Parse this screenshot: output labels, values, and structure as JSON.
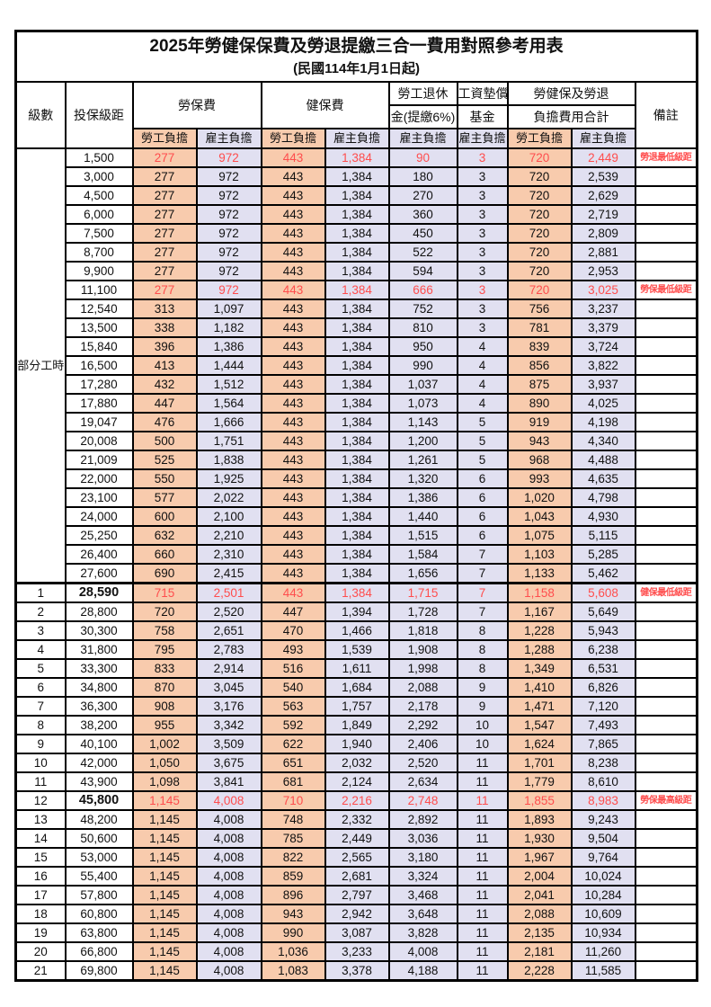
{
  "title": "2025年勞健保保費及勞退提繳三合一費用對照參考用表",
  "subtitle": "(民國114年1月1日起)",
  "columns": {
    "level": "級數",
    "bracket": "投保級距",
    "labor_ins": "勞保費",
    "health_ins": "健保費",
    "pension_l1": "勞工退休",
    "pension_l2": "金(提繳6%)",
    "wage_fund_l1": "工資墊償",
    "wage_fund_l2": "基金",
    "total_l1": "勞健保及勞退",
    "total_l2": "負擔費用合計",
    "remark": "備註",
    "employee_label": "勞工負擔",
    "employer_label": "雇主負擔"
  },
  "part_time_label": "部分工時",
  "colors": {
    "employee_bg": "#F8CBAD",
    "employer_bg": "#E1E0F1",
    "highlight_text": "#FF4D4D",
    "border": "#000000"
  },
  "rows": [
    {
      "bracket": "1,500",
      "values": [
        "277",
        "972",
        "443",
        "1,384",
        "90",
        "3",
        "720",
        "2,449"
      ],
      "remark": "勞退最低級距",
      "highlight": true
    },
    {
      "bracket": "3,000",
      "values": [
        "277",
        "972",
        "443",
        "1,384",
        "180",
        "3",
        "720",
        "2,539"
      ]
    },
    {
      "bracket": "4,500",
      "values": [
        "277",
        "972",
        "443",
        "1,384",
        "270",
        "3",
        "720",
        "2,629"
      ]
    },
    {
      "bracket": "6,000",
      "values": [
        "277",
        "972",
        "443",
        "1,384",
        "360",
        "3",
        "720",
        "2,719"
      ]
    },
    {
      "bracket": "7,500",
      "values": [
        "277",
        "972",
        "443",
        "1,384",
        "450",
        "3",
        "720",
        "2,809"
      ]
    },
    {
      "bracket": "8,700",
      "values": [
        "277",
        "972",
        "443",
        "1,384",
        "522",
        "3",
        "720",
        "2,881"
      ]
    },
    {
      "bracket": "9,900",
      "values": [
        "277",
        "972",
        "443",
        "1,384",
        "594",
        "3",
        "720",
        "2,953"
      ]
    },
    {
      "bracket": "11,100",
      "values": [
        "277",
        "972",
        "443",
        "1,384",
        "666",
        "3",
        "720",
        "3,025"
      ],
      "remark": "勞保最低級距",
      "highlight": true
    },
    {
      "bracket": "12,540",
      "values": [
        "313",
        "1,097",
        "443",
        "1,384",
        "752",
        "3",
        "756",
        "3,237"
      ]
    },
    {
      "bracket": "13,500",
      "values": [
        "338",
        "1,182",
        "443",
        "1,384",
        "810",
        "3",
        "781",
        "3,379"
      ]
    },
    {
      "bracket": "15,840",
      "values": [
        "396",
        "1,386",
        "443",
        "1,384",
        "950",
        "4",
        "839",
        "3,724"
      ]
    },
    {
      "bracket": "16,500",
      "values": [
        "413",
        "1,444",
        "443",
        "1,384",
        "990",
        "4",
        "856",
        "3,822"
      ]
    },
    {
      "bracket": "17,280",
      "values": [
        "432",
        "1,512",
        "443",
        "1,384",
        "1,037",
        "4",
        "875",
        "3,937"
      ]
    },
    {
      "bracket": "17,880",
      "values": [
        "447",
        "1,564",
        "443",
        "1,384",
        "1,073",
        "4",
        "890",
        "4,025"
      ]
    },
    {
      "bracket": "19,047",
      "values": [
        "476",
        "1,666",
        "443",
        "1,384",
        "1,143",
        "5",
        "919",
        "4,198"
      ]
    },
    {
      "bracket": "20,008",
      "values": [
        "500",
        "1,751",
        "443",
        "1,384",
        "1,200",
        "5",
        "943",
        "4,340"
      ]
    },
    {
      "bracket": "21,009",
      "values": [
        "525",
        "1,838",
        "443",
        "1,384",
        "1,261",
        "5",
        "968",
        "4,488"
      ]
    },
    {
      "bracket": "22,000",
      "values": [
        "550",
        "1,925",
        "443",
        "1,384",
        "1,320",
        "6",
        "993",
        "4,635"
      ]
    },
    {
      "bracket": "23,100",
      "values": [
        "577",
        "2,022",
        "443",
        "1,384",
        "1,386",
        "6",
        "1,020",
        "4,798"
      ]
    },
    {
      "bracket": "24,000",
      "values": [
        "600",
        "2,100",
        "443",
        "1,384",
        "1,440",
        "6",
        "1,043",
        "4,930"
      ]
    },
    {
      "bracket": "25,250",
      "values": [
        "632",
        "2,210",
        "443",
        "1,384",
        "1,515",
        "6",
        "1,075",
        "5,115"
      ]
    },
    {
      "bracket": "26,400",
      "values": [
        "660",
        "2,310",
        "443",
        "1,384",
        "1,584",
        "7",
        "1,103",
        "5,285"
      ]
    },
    {
      "bracket": "27,600",
      "values": [
        "690",
        "2,415",
        "443",
        "1,384",
        "1,656",
        "7",
        "1,133",
        "5,462"
      ]
    },
    {
      "level": "1",
      "bracket": "28,590",
      "values": [
        "715",
        "2,501",
        "443",
        "1,384",
        "1,715",
        "7",
        "1,158",
        "5,608"
      ],
      "remark": "健保最低級距",
      "highlight": true,
      "bold_bracket": true,
      "section_start": true
    },
    {
      "level": "2",
      "bracket": "28,800",
      "values": [
        "720",
        "2,520",
        "447",
        "1,394",
        "1,728",
        "7",
        "1,167",
        "5,649"
      ]
    },
    {
      "level": "3",
      "bracket": "30,300",
      "values": [
        "758",
        "2,651",
        "470",
        "1,466",
        "1,818",
        "8",
        "1,228",
        "5,943"
      ]
    },
    {
      "level": "4",
      "bracket": "31,800",
      "values": [
        "795",
        "2,783",
        "493",
        "1,539",
        "1,908",
        "8",
        "1,288",
        "6,238"
      ]
    },
    {
      "level": "5",
      "bracket": "33,300",
      "values": [
        "833",
        "2,914",
        "516",
        "1,611",
        "1,998",
        "8",
        "1,349",
        "6,531"
      ]
    },
    {
      "level": "6",
      "bracket": "34,800",
      "values": [
        "870",
        "3,045",
        "540",
        "1,684",
        "2,088",
        "9",
        "1,410",
        "6,826"
      ]
    },
    {
      "level": "7",
      "bracket": "36,300",
      "values": [
        "908",
        "3,176",
        "563",
        "1,757",
        "2,178",
        "9",
        "1,471",
        "7,120"
      ]
    },
    {
      "level": "8",
      "bracket": "38,200",
      "values": [
        "955",
        "3,342",
        "592",
        "1,849",
        "2,292",
        "10",
        "1,547",
        "7,493"
      ]
    },
    {
      "level": "9",
      "bracket": "40,100",
      "values": [
        "1,002",
        "3,509",
        "622",
        "1,940",
        "2,406",
        "10",
        "1,624",
        "7,865"
      ]
    },
    {
      "level": "10",
      "bracket": "42,000",
      "values": [
        "1,050",
        "3,675",
        "651",
        "2,032",
        "2,520",
        "11",
        "1,701",
        "8,238"
      ]
    },
    {
      "level": "11",
      "bracket": "43,900",
      "values": [
        "1,098",
        "3,841",
        "681",
        "2,124",
        "2,634",
        "11",
        "1,779",
        "8,610"
      ]
    },
    {
      "level": "12",
      "bracket": "45,800",
      "values": [
        "1,145",
        "4,008",
        "710",
        "2,216",
        "2,748",
        "11",
        "1,855",
        "8,983"
      ],
      "remark": "勞保最高級距",
      "highlight": true,
      "bold_bracket": true
    },
    {
      "level": "13",
      "bracket": "48,200",
      "values": [
        "1,145",
        "4,008",
        "748",
        "2,332",
        "2,892",
        "11",
        "1,893",
        "9,243"
      ]
    },
    {
      "level": "14",
      "bracket": "50,600",
      "values": [
        "1,145",
        "4,008",
        "785",
        "2,449",
        "3,036",
        "11",
        "1,930",
        "9,504"
      ]
    },
    {
      "level": "15",
      "bracket": "53,000",
      "values": [
        "1,145",
        "4,008",
        "822",
        "2,565",
        "3,180",
        "11",
        "1,967",
        "9,764"
      ]
    },
    {
      "level": "16",
      "bracket": "55,400",
      "values": [
        "1,145",
        "4,008",
        "859",
        "2,681",
        "3,324",
        "11",
        "2,004",
        "10,024"
      ]
    },
    {
      "level": "17",
      "bracket": "57,800",
      "values": [
        "1,145",
        "4,008",
        "896",
        "2,797",
        "3,468",
        "11",
        "2,041",
        "10,284"
      ]
    },
    {
      "level": "18",
      "bracket": "60,800",
      "values": [
        "1,145",
        "4,008",
        "943",
        "2,942",
        "3,648",
        "11",
        "2,088",
        "10,609"
      ]
    },
    {
      "level": "19",
      "bracket": "63,800",
      "values": [
        "1,145",
        "4,008",
        "990",
        "3,087",
        "3,828",
        "11",
        "2,135",
        "10,934"
      ]
    },
    {
      "level": "20",
      "bracket": "66,800",
      "values": [
        "1,145",
        "4,008",
        "1,036",
        "3,233",
        "4,008",
        "11",
        "2,181",
        "11,260"
      ]
    },
    {
      "level": "21",
      "bracket": "69,800",
      "values": [
        "1,145",
        "4,008",
        "1,083",
        "3,378",
        "4,188",
        "11",
        "2,228",
        "11,585"
      ]
    }
  ]
}
